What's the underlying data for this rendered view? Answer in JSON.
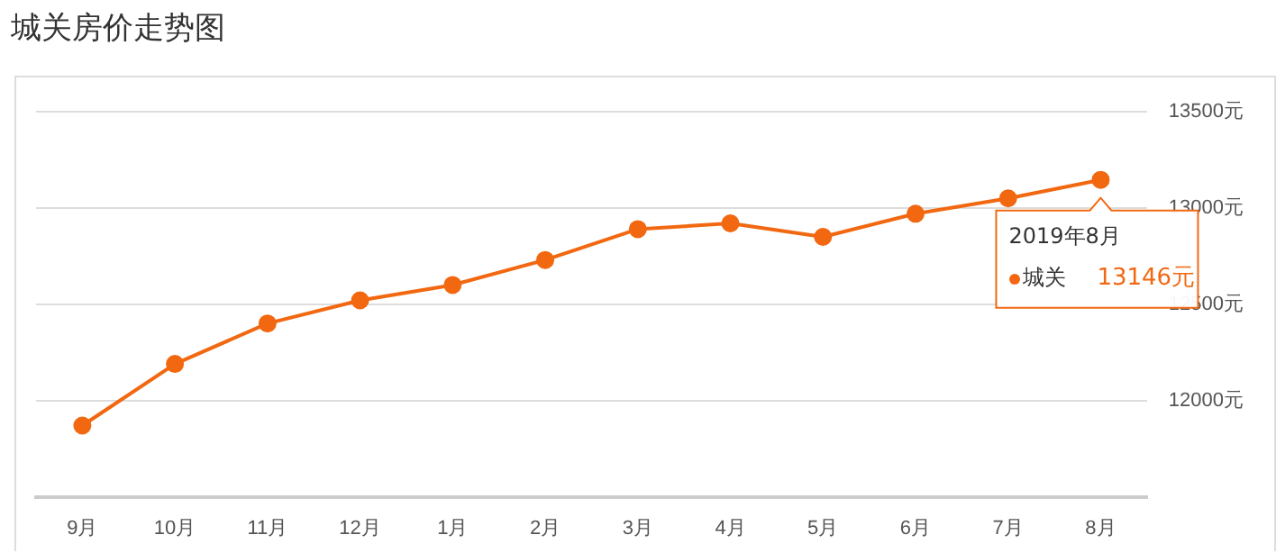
{
  "chart_data": {
    "type": "line",
    "title": "城关房价走势图",
    "categories": [
      "9月",
      "10月",
      "11月",
      "12月",
      "1月",
      "2月",
      "3月",
      "4月",
      "5月",
      "6月",
      "7月",
      "8月"
    ],
    "series": [
      {
        "name": "城关",
        "color": "#f26811",
        "values": [
          11870,
          12190,
          12400,
          12520,
          12600,
          12730,
          12890,
          12920,
          12850,
          12970,
          13050,
          13146
        ]
      }
    ],
    "ylim": [
      11500,
      13500
    ],
    "yticks": [
      {
        "value": 12000,
        "label": "12000元"
      },
      {
        "value": 12500,
        "label": "12500元"
      },
      {
        "value": 13000,
        "label": "13000元"
      },
      {
        "value": 13500,
        "label": "13500元"
      }
    ],
    "annotations": [
      {
        "text": "2019年8月",
        "x": "8月",
        "y": 13146
      },
      "13146元"
    ],
    "grid": "y",
    "legend": "right",
    "marker": "circle",
    "line_style": "solid"
  }
}
